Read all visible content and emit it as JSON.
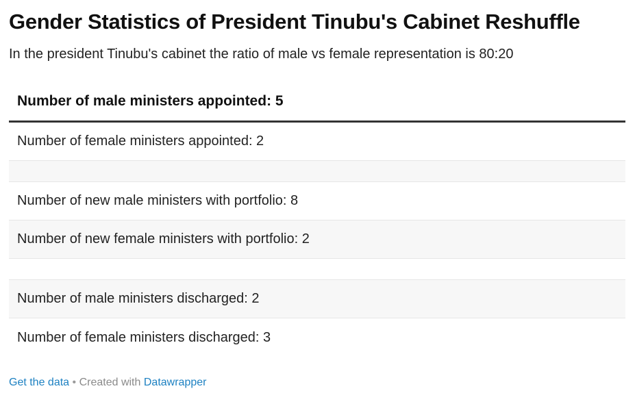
{
  "header": {
    "title": "Gender Statistics of President Tinubu's Cabinet Reshuffle",
    "subtitle": "In the president Tinubu's cabinet the ratio of male vs female representation is 80:20"
  },
  "table": {
    "header": "Number of male ministers appointed: 5",
    "rows": [
      "Number of female ministers appointed: 2",
      "",
      "Number of new male ministers with portfolio: 8",
      "Number of new female ministers with portfolio: 2",
      "",
      "Number of male ministers discharged: 2",
      "Number of female ministers discharged: 3"
    ]
  },
  "footer": {
    "get_data_label": "Get the data",
    "separator": "•",
    "created_with": "Created with",
    "tool_name": "Datawrapper"
  },
  "colors": {
    "link": "#1d81c2",
    "header_rule": "#333333",
    "row_shade": "#f7f7f7"
  }
}
